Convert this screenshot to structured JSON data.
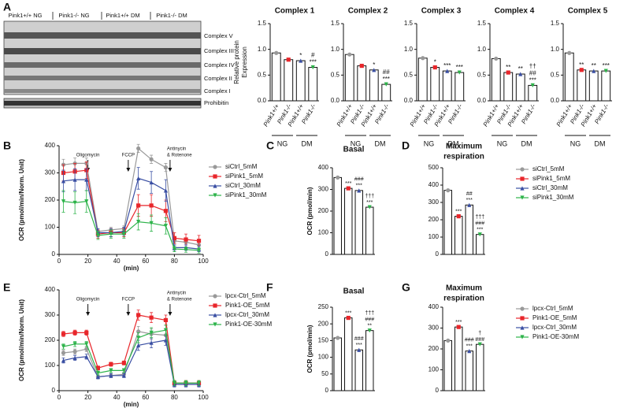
{
  "panel_labels": [
    "A",
    "B",
    "C",
    "D",
    "E",
    "F",
    "G"
  ],
  "blot": {
    "lanes": [
      "Pink1+/+ NG",
      "Pink1-/- NG",
      "Pink1+/+ DM",
      "Pink1-/- DM"
    ],
    "bands": [
      "Complex V",
      "Complex III",
      "Complex IV",
      "Complex II",
      "Complex I"
    ],
    "loading": "Prohibitin"
  },
  "chart_data": [
    {
      "type": "complexbar",
      "title": "Complex 1",
      "ylabel": [
        "Relative protein",
        "Expression"
      ],
      "categories": [
        "Pink1+/+",
        "Pink1-/-",
        "Pink1+/+",
        "Pink1-/-"
      ],
      "groups": [
        "NG",
        "DM"
      ],
      "values": [
        0.93,
        0.8,
        0.78,
        0.65
      ],
      "colors": [
        "#999999",
        "#e8262b",
        "#3a4fa3",
        "#2db34a"
      ],
      "markers": [
        "circle",
        "square",
        "triangle",
        "down"
      ],
      "annotations": [
        [],
        [],
        [
          "*"
        ],
        [
          "#",
          "***"
        ]
      ],
      "ylim": [
        0,
        1.5
      ],
      "yticks": [
        {
          "value": 0,
          "label": "0.0"
        },
        {
          "value": 0.5,
          "label": "0.5"
        },
        {
          "value": 1,
          "label": "1.0"
        },
        {
          "value": 1.5,
          "label": "1.5"
        }
      ]
    },
    {
      "type": "complexbar",
      "title": "Complex 2",
      "categories": [
        "Pink1+/+",
        "Pink1-/-",
        "Pink1+/+",
        "Pink1-/-"
      ],
      "groups": [
        "NG",
        "DM"
      ],
      "values": [
        0.9,
        0.68,
        0.6,
        0.32
      ],
      "colors": [
        "#999999",
        "#e8262b",
        "#3a4fa3",
        "#2db34a"
      ],
      "markers": [
        "circle",
        "square",
        "triangle",
        "down"
      ],
      "annotations": [
        [],
        [],
        [
          "*"
        ],
        [
          "##",
          "***"
        ]
      ],
      "ylim": [
        0,
        1.5
      ],
      "yticks": [
        {
          "value": 0,
          "label": "0.0"
        },
        {
          "value": 0.5,
          "label": "0.5"
        },
        {
          "value": 1,
          "label": "1.0"
        },
        {
          "value": 1.5,
          "label": "1.5"
        }
      ]
    },
    {
      "type": "complexbar",
      "title": "Complex 3",
      "categories": [
        "Pink1+/+",
        "Pink1-/-",
        "Pink1+/+",
        "Pink1-/-"
      ],
      "groups": [
        "NG",
        "DM"
      ],
      "values": [
        0.83,
        0.65,
        0.58,
        0.55
      ],
      "colors": [
        "#999999",
        "#e8262b",
        "#3a4fa3",
        "#2db34a"
      ],
      "markers": [
        "circle",
        "square",
        "triangle",
        "down"
      ],
      "annotations": [
        [],
        [
          "*"
        ],
        [
          "***"
        ],
        [
          "***"
        ]
      ],
      "ylim": [
        0,
        1.5
      ],
      "yticks": [
        {
          "value": 0,
          "label": "0.0"
        },
        {
          "value": 0.5,
          "label": "0.5"
        },
        {
          "value": 1,
          "label": "1.0"
        },
        {
          "value": 1.5,
          "label": "1.5"
        }
      ]
    },
    {
      "type": "complexbar",
      "title": "Complex 4",
      "categories": [
        "Pink1+/+",
        "Pink1-/-",
        "Pink1+/+",
        "Pink1-/-"
      ],
      "groups": [
        "NG",
        "DM"
      ],
      "values": [
        0.82,
        0.55,
        0.52,
        0.3
      ],
      "colors": [
        "#999999",
        "#e8262b",
        "#3a4fa3",
        "#2db34a"
      ],
      "markers": [
        "circle",
        "square",
        "triangle",
        "down"
      ],
      "annotations": [
        [],
        [
          "**"
        ],
        [
          "**"
        ],
        [
          "††",
          "##",
          "***"
        ]
      ],
      "ylim": [
        0,
        1.5
      ],
      "yticks": [
        {
          "value": 0,
          "label": "0.0"
        },
        {
          "value": 0.5,
          "label": "0.5"
        },
        {
          "value": 1,
          "label": "1.0"
        },
        {
          "value": 1.5,
          "label": "1.5"
        }
      ]
    },
    {
      "type": "complexbar",
      "title": "Complex 5",
      "categories": [
        "Pink1+/+",
        "Pink1-/-",
        "Pink1+/+",
        "Pink1-/-"
      ],
      "groups": [
        "NG",
        "DM"
      ],
      "values": [
        0.93,
        0.6,
        0.58,
        0.58
      ],
      "colors": [
        "#999999",
        "#e8262b",
        "#3a4fa3",
        "#2db34a"
      ],
      "markers": [
        "circle",
        "square",
        "triangle",
        "down"
      ],
      "annotations": [
        [],
        [
          "**"
        ],
        [
          "**"
        ],
        [
          "***"
        ]
      ],
      "ylim": [
        0,
        1.5
      ],
      "yticks": [
        {
          "value": 0,
          "label": "0.0"
        },
        {
          "value": 0.5,
          "label": "0.5"
        },
        {
          "value": 1,
          "label": "1.0"
        },
        {
          "value": 1.5,
          "label": "1.5"
        }
      ]
    },
    {
      "type": "line",
      "ylabel": "OCR (pmol/min/Norm. Unit)",
      "xlabel": "(min)",
      "x": [
        3,
        11,
        19,
        27,
        36,
        45,
        55,
        64,
        74,
        80,
        88,
        97
      ],
      "xlim": [
        0,
        100
      ],
      "xticks": [
        0,
        20,
        40,
        60,
        80,
        100
      ],
      "ylim": [
        0,
        400
      ],
      "yticks": [
        0,
        100,
        200,
        300,
        400
      ],
      "annotations": [
        {
          "text": [
            "Oligomycin"
          ],
          "x": 20
        },
        {
          "text": [
            "FCCP"
          ],
          "x": 48
        },
        {
          "text": [
            "Antinycin",
            "& Rotenone"
          ],
          "x": 77
        }
      ],
      "series": [
        {
          "name": "siCtrl_5mM",
          "color": "#999999",
          "marker": "circle",
          "values": [
            330,
            335,
            335,
            85,
            90,
            95,
            390,
            350,
            320,
            50,
            45,
            35
          ],
          "errors": [
            20,
            20,
            20,
            10,
            10,
            10,
            15,
            15,
            15,
            10,
            10,
            10
          ]
        },
        {
          "name": "siPink1_5mM",
          "color": "#e8262b",
          "marker": "square",
          "values": [
            300,
            305,
            310,
            75,
            80,
            80,
            180,
            180,
            160,
            60,
            55,
            50
          ],
          "errors": [
            30,
            30,
            30,
            15,
            15,
            15,
            40,
            40,
            40,
            20,
            20,
            20
          ]
        },
        {
          "name": "siCtrl_30mM",
          "color": "#3a4fa3",
          "marker": "triangle",
          "values": [
            270,
            275,
            275,
            80,
            80,
            85,
            280,
            265,
            235,
            25,
            25,
            20
          ],
          "errors": [
            40,
            40,
            40,
            15,
            15,
            15,
            40,
            40,
            40,
            10,
            10,
            10
          ]
        },
        {
          "name": "siPink1_30mM",
          "color": "#2db34a",
          "marker": "down",
          "values": [
            195,
            190,
            195,
            70,
            75,
            75,
            120,
            115,
            105,
            20,
            18,
            15
          ],
          "errors": [
            40,
            40,
            40,
            15,
            15,
            15,
            30,
            30,
            30,
            10,
            10,
            10
          ]
        }
      ]
    },
    {
      "type": "bar",
      "title": "Basal",
      "ylabel": "OCR (pmol/min)",
      "categories": [
        null,
        null,
        null,
        null
      ],
      "values": [
        355,
        305,
        295,
        218
      ],
      "colors": [
        "#999999",
        "#e8262b",
        "#3a4fa3",
        "#2db34a"
      ],
      "markers": [
        "circle",
        "square",
        "triangle",
        "down"
      ],
      "annotations": [
        [],
        [
          "***"
        ],
        [
          "###",
          "***"
        ],
        [
          "†††",
          "***"
        ]
      ],
      "ylim": [
        0,
        400
      ],
      "yticks": [
        0,
        100,
        200,
        300,
        400
      ]
    },
    {
      "type": "bar",
      "title": [
        "Maximum",
        "respiration"
      ],
      "categories": [
        null,
        null,
        null,
        null
      ],
      "values": [
        370,
        220,
        285,
        115
      ],
      "colors": [
        "#999999",
        "#e8262b",
        "#3a4fa3",
        "#2db34a"
      ],
      "markers": [
        "circle",
        "square",
        "triangle",
        "down"
      ],
      "annotations": [
        [],
        [
          "***"
        ],
        [
          "##",
          "***"
        ],
        [
          "†††",
          "###",
          "***"
        ]
      ],
      "ylim": [
        0,
        500
      ],
      "yticks": [
        0,
        100,
        200,
        300,
        400,
        500
      ],
      "legend": [
        "siCtrl_5mM",
        "siPink1_5mM",
        "siCtrl_30mM",
        "siPink1_30mM"
      ]
    },
    {
      "type": "line",
      "ylabel": "OCR (pmol/min/Norm. Unit)",
      "xlabel": "(min)",
      "x": [
        3,
        11,
        19,
        27,
        36,
        45,
        55,
        64,
        74,
        80,
        88,
        97
      ],
      "xlim": [
        0,
        100
      ],
      "xticks": [
        0,
        20,
        40,
        60,
        80,
        100
      ],
      "ylim": [
        0,
        400
      ],
      "yticks": [
        0,
        100,
        200,
        300,
        400
      ],
      "annotations": [
        {
          "text": [
            "Oligomycin"
          ],
          "x": 20
        },
        {
          "text": [
            "FCCP"
          ],
          "x": 48
        },
        {
          "text": [
            "Antinycin",
            "& Rotenone"
          ],
          "x": 77
        }
      ],
      "series": [
        {
          "name": "lpcx-Ctrl_5mM",
          "color": "#999999",
          "marker": "circle",
          "values": [
            150,
            155,
            165,
            55,
            60,
            65,
            235,
            225,
            220,
            25,
            25,
            25
          ],
          "errors": [
            10,
            10,
            10,
            8,
            8,
            8,
            20,
            20,
            20,
            10,
            10,
            10
          ]
        },
        {
          "name": "Pink1-OE_5mM",
          "color": "#e8262b",
          "marker": "square",
          "values": [
            225,
            230,
            230,
            90,
            105,
            110,
            300,
            290,
            280,
            30,
            30,
            30
          ],
          "errors": [
            10,
            10,
            10,
            8,
            8,
            8,
            20,
            20,
            20,
            10,
            10,
            10
          ]
        },
        {
          "name": "lpcx-Ctrl_30mM",
          "color": "#3a4fa3",
          "marker": "triangle",
          "values": [
            120,
            130,
            135,
            55,
            60,
            60,
            180,
            190,
            200,
            25,
            25,
            25
          ],
          "errors": [
            10,
            10,
            10,
            8,
            8,
            8,
            20,
            20,
            20,
            10,
            10,
            10
          ]
        },
        {
          "name": "Pink1-OE-30mM",
          "color": "#2db34a",
          "marker": "down",
          "values": [
            175,
            185,
            185,
            70,
            80,
            80,
            210,
            230,
            240,
            30,
            30,
            30
          ],
          "errors": [
            10,
            10,
            10,
            8,
            8,
            8,
            20,
            20,
            20,
            10,
            10,
            10
          ]
        }
      ]
    },
    {
      "type": "bar",
      "title": "Basal",
      "ylabel": "OCR (pmol/min)",
      "categories": [
        null,
        null,
        null,
        null
      ],
      "values": [
        158,
        218,
        122,
        180
      ],
      "colors": [
        "#999999",
        "#e8262b",
        "#3a4fa3",
        "#2db34a"
      ],
      "markers": [
        "circle",
        "square",
        "triangle",
        "down"
      ],
      "annotations": [
        [],
        [
          "***"
        ],
        [
          "###",
          "***"
        ],
        [
          "†††",
          "###",
          "**"
        ]
      ],
      "ylim": [
        0,
        250
      ],
      "yticks": [
        0,
        50,
        100,
        150,
        200,
        250
      ]
    },
    {
      "type": "bar",
      "title": [
        "Maximum",
        "respiration"
      ],
      "categories": [
        null,
        null,
        null,
        null
      ],
      "values": [
        240,
        305,
        190,
        222
      ],
      "colors": [
        "#999999",
        "#e8262b",
        "#3a4fa3",
        "#2db34a"
      ],
      "markers": [
        "circle",
        "square",
        "triangle",
        "down"
      ],
      "annotations": [
        [],
        [
          "***"
        ],
        [
          "###",
          "***"
        ],
        [
          "†",
          "###"
        ]
      ],
      "ylim": [
        0,
        400
      ],
      "yticks": [
        0,
        100,
        200,
        300,
        400
      ],
      "legend": [
        "lpcx-Ctrl_5mM",
        "Pink1-OE_5mM",
        "lpcx-Ctrl_30mM",
        "Pink1-OE-30mM"
      ]
    }
  ]
}
